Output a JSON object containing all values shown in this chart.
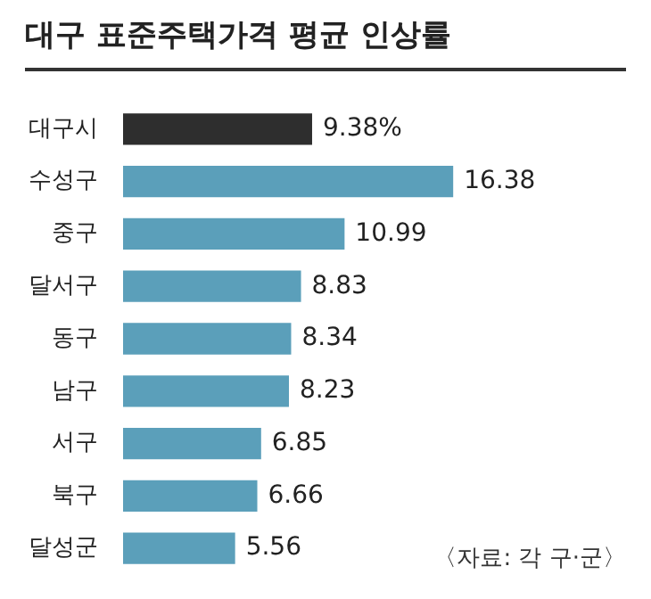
{
  "chart_data": {
    "type": "bar",
    "orientation": "horizontal",
    "title": "대구 표준주택가격 평균 인상률",
    "categories": [
      "대구시",
      "수성구",
      "중구",
      "달서구",
      "동구",
      "남구",
      "서구",
      "북구",
      "달성군"
    ],
    "values": [
      9.38,
      16.38,
      10.99,
      8.83,
      8.34,
      8.23,
      6.85,
      6.66,
      5.56
    ],
    "value_labels": [
      "9.38%",
      "16.38",
      "10.99",
      "8.83",
      "8.34",
      "8.23",
      "6.85",
      "6.66",
      "5.56"
    ],
    "colors": [
      "#2e2e2e",
      "#5b9fba",
      "#5b9fba",
      "#5b9fba",
      "#5b9fba",
      "#5b9fba",
      "#5b9fba",
      "#5b9fba",
      "#5b9fba"
    ],
    "tick_labels": "y",
    "legend": false,
    "annotations": [
      "〈자료: 각 구·군〉"
    ]
  }
}
